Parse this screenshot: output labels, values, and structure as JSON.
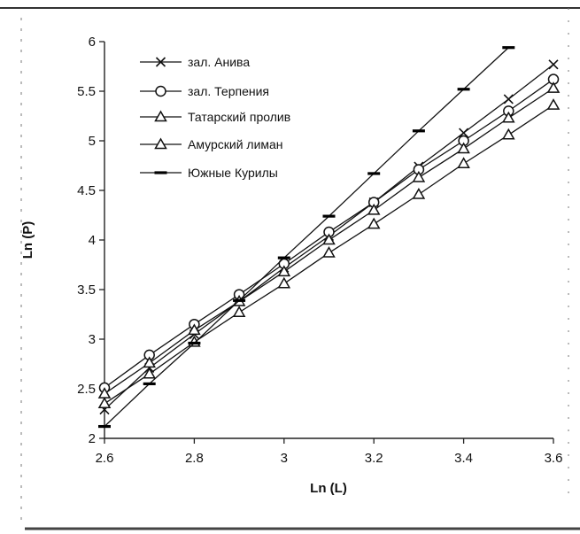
{
  "chart_data": {
    "type": "line",
    "xlabel": "Ln (L)",
    "ylabel": "Ln (P)",
    "xlim": [
      2.6,
      3.6
    ],
    "ylim": [
      2,
      6
    ],
    "x_ticks": [
      "2.6",
      "2.8",
      "3",
      "3.2",
      "3.4",
      "3.6"
    ],
    "y_ticks": [
      "2",
      "2.5",
      "3",
      "3.5",
      "4",
      "4.5",
      "5",
      "5.5",
      "6"
    ],
    "legend_position": "top-left",
    "grid": false,
    "series": [
      {
        "name": "зал. Анива",
        "marker": "x",
        "x": [
          2.6,
          2.7,
          2.8,
          2.9,
          3.0,
          3.1,
          3.2,
          3.3,
          3.4,
          3.5,
          3.6
        ],
        "y": [
          2.29,
          2.71,
          3.05,
          3.38,
          3.72,
          4.04,
          4.38,
          4.74,
          5.08,
          5.42,
          5.77
        ]
      },
      {
        "name": "зал. Терпения",
        "marker": "circle",
        "x": [
          2.6,
          2.7,
          2.8,
          2.9,
          3.0,
          3.1,
          3.2,
          3.3,
          3.4,
          3.5,
          3.6
        ],
        "y": [
          2.51,
          2.84,
          3.15,
          3.45,
          3.76,
          4.08,
          4.38,
          4.71,
          5.0,
          5.3,
          5.62
        ]
      },
      {
        "name": "Татарский пролив",
        "marker": "triangle",
        "x": [
          2.6,
          2.7,
          2.8,
          2.9,
          3.0,
          3.1,
          3.2,
          3.3,
          3.4,
          3.5,
          3.6
        ],
        "y": [
          2.45,
          2.76,
          3.09,
          3.38,
          3.68,
          4.0,
          4.3,
          4.63,
          4.92,
          5.23,
          5.53
        ]
      },
      {
        "name": "Амурский лиман",
        "marker": "triangle",
        "x": [
          2.6,
          2.7,
          2.8,
          2.9,
          3.0,
          3.1,
          3.2,
          3.3,
          3.4,
          3.5,
          3.6
        ],
        "y": [
          2.35,
          2.65,
          2.97,
          3.27,
          3.56,
          3.87,
          4.16,
          4.46,
          4.77,
          5.06,
          5.36
        ]
      },
      {
        "name": "Южные Курилы",
        "marker": "dash",
        "x": [
          2.6,
          2.7,
          2.8,
          2.9,
          3.0,
          3.1,
          3.2,
          3.3,
          3.4,
          3.5
        ],
        "y": [
          2.12,
          2.55,
          2.96,
          3.39,
          3.82,
          4.24,
          4.67,
          5.1,
          5.52,
          5.94
        ]
      }
    ]
  }
}
